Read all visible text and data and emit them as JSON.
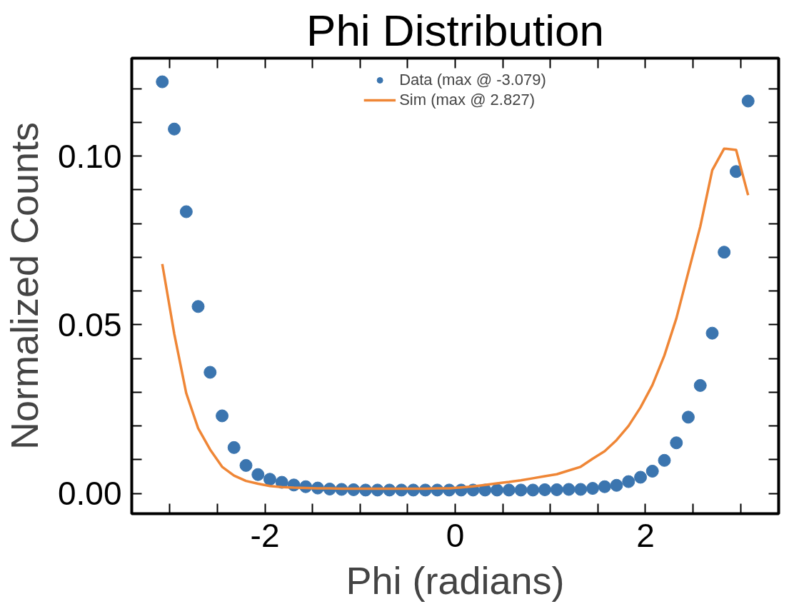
{
  "chart_data": {
    "type": "scatter",
    "title": "Phi Distribution",
    "xlabel": "Phi (radians)",
    "ylabel": "Normalized Counts",
    "x": [
      -3.079,
      -2.953,
      -2.827,
      -2.702,
      -2.576,
      -2.45,
      -2.325,
      -2.199,
      -2.073,
      -1.948,
      -1.822,
      -1.696,
      -1.571,
      -1.445,
      -1.319,
      -1.194,
      -1.068,
      -0.942,
      -0.817,
      -0.691,
      -0.565,
      -0.44,
      -0.314,
      -0.188,
      -0.063,
      0.063,
      0.188,
      0.314,
      0.44,
      0.565,
      0.691,
      0.817,
      0.942,
      1.068,
      1.194,
      1.319,
      1.445,
      1.571,
      1.696,
      1.822,
      1.948,
      2.073,
      2.199,
      2.325,
      2.45,
      2.576,
      2.702,
      2.827,
      2.953,
      3.079
    ],
    "series": [
      {
        "name": "Data (max @ -3.079)",
        "marker": "circle",
        "color": "#3b75af",
        "values": [
          0.122,
          0.108,
          0.0835,
          0.0554,
          0.0359,
          0.023,
          0.0136,
          0.0083,
          0.0056,
          0.0042,
          0.0033,
          0.0025,
          0.002,
          0.0016,
          0.0013,
          0.0012,
          0.0011,
          0.001,
          0.001,
          0.001,
          0.001,
          0.001,
          0.001,
          0.001,
          0.001,
          0.001,
          0.001,
          0.001,
          0.001,
          0.001,
          0.001,
          0.001,
          0.0011,
          0.0011,
          0.0012,
          0.0012,
          0.0015,
          0.002,
          0.0024,
          0.0035,
          0.0048,
          0.0066,
          0.0098,
          0.015,
          0.0226,
          0.032,
          0.0475,
          0.0715,
          0.0954,
          0.1163
        ]
      },
      {
        "name": "Sim (max @ 2.827)",
        "type": "line",
        "marker": "none",
        "line_style": "solid",
        "color": "#ef8636",
        "values": [
          0.068,
          0.0473,
          0.0297,
          0.0193,
          0.013,
          0.0079,
          0.0053,
          0.0037,
          0.0029,
          0.0022,
          0.0019,
          0.0017,
          0.0016,
          0.0015,
          0.0015,
          0.0014,
          0.0014,
          0.0014,
          0.0014,
          0.0014,
          0.0014,
          0.0014,
          0.0014,
          0.0015,
          0.0015,
          0.0018,
          0.0021,
          0.0025,
          0.003,
          0.0034,
          0.0039,
          0.0045,
          0.0051,
          0.0057,
          0.0068,
          0.0079,
          0.0103,
          0.0125,
          0.0158,
          0.02,
          0.0255,
          0.0321,
          0.0409,
          0.0519,
          0.0655,
          0.0791,
          0.0958,
          0.1022,
          0.1018,
          0.0884
        ]
      }
    ],
    "xlim": [
      -3.4,
      3.4
    ],
    "ylim": [
      -0.006,
      0.129
    ],
    "xticks": [
      {
        "value": -3.0,
        "label": null
      },
      {
        "value": -2.5,
        "label": null
      },
      -2,
      {
        "value": -1.5,
        "label": null
      },
      {
        "value": -1.0,
        "label": null
      },
      {
        "value": -0.5,
        "label": null
      },
      0,
      {
        "value": 0.5,
        "label": null
      },
      {
        "value": 1.0,
        "label": null
      },
      {
        "value": 1.5,
        "label": null
      },
      2,
      {
        "value": 2.5,
        "label": null
      },
      {
        "value": 3.0,
        "label": null
      }
    ],
    "yticks": [
      {
        "value": 0,
        "label": "0.00"
      },
      {
        "value": 0.01,
        "label": null
      },
      {
        "value": 0.02,
        "label": null
      },
      {
        "value": 0.03,
        "label": null
      },
      {
        "value": 0.04,
        "label": null
      },
      {
        "value": 0.05,
        "label": "0.05"
      },
      {
        "value": 0.06,
        "label": null
      },
      {
        "value": 0.07,
        "label": null
      },
      {
        "value": 0.08,
        "label": null
      },
      {
        "value": 0.09,
        "label": null
      },
      {
        "value": 0.1,
        "label": "0.10"
      },
      {
        "value": 0.11,
        "label": null
      },
      {
        "value": 0.12,
        "label": null
      }
    ],
    "grid": false,
    "legend": "top"
  }
}
